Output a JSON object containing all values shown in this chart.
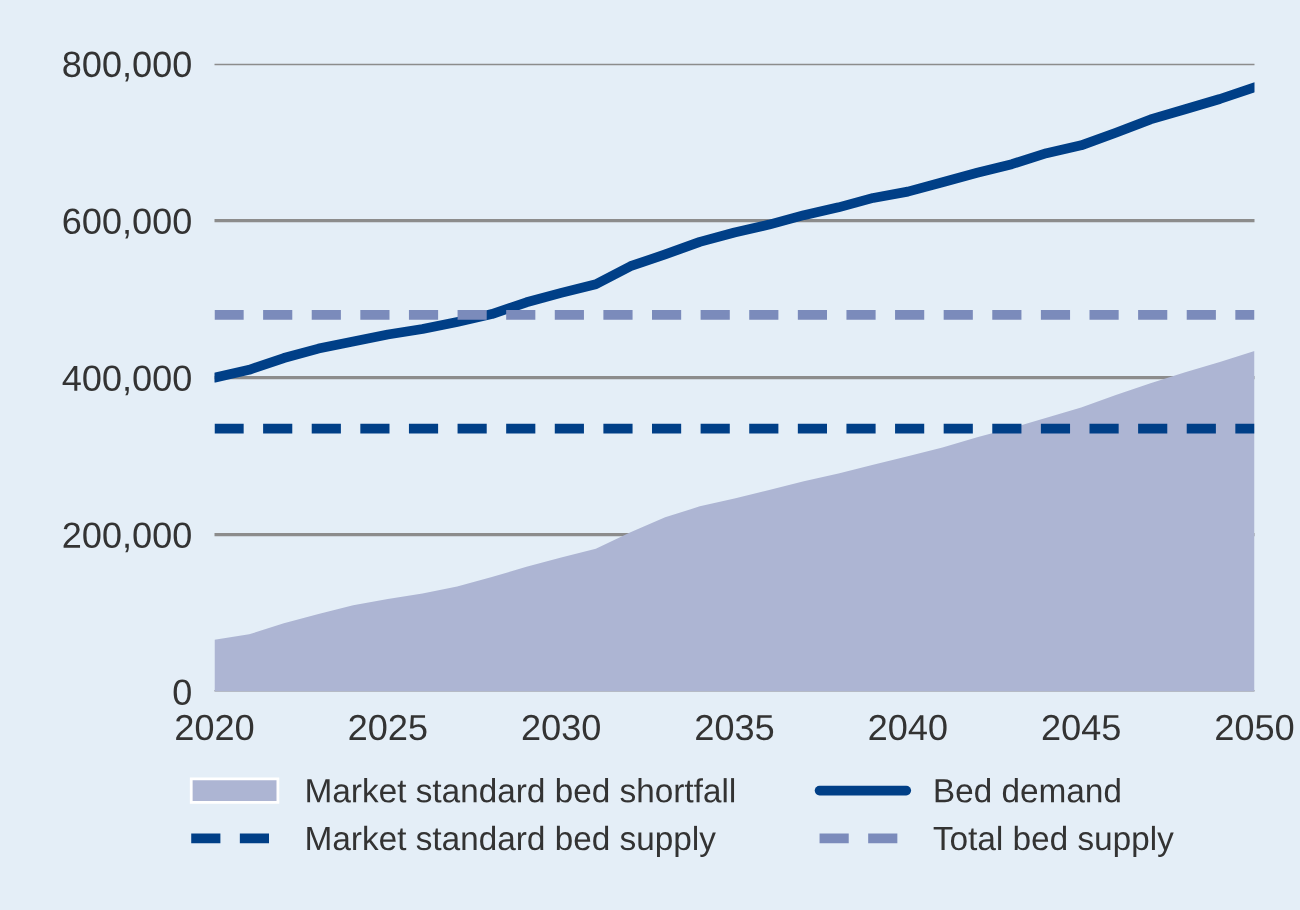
{
  "chart_data": {
    "type": "line",
    "x": [
      2020,
      2021,
      2022,
      2023,
      2024,
      2025,
      2026,
      2027,
      2028,
      2029,
      2030,
      2031,
      2032,
      2033,
      2034,
      2035,
      2036,
      2037,
      2038,
      2039,
      2040,
      2041,
      2042,
      2043,
      2044,
      2045,
      2046,
      2047,
      2048,
      2049,
      2050
    ],
    "series": [
      {
        "name": "Market standard bed shortfall",
        "type": "area",
        "color": "#adb5d3",
        "values": [
          66000,
          73000,
          87000,
          99000,
          110000,
          118000,
          125000,
          134000,
          146000,
          159000,
          171000,
          182000,
          203000,
          222000,
          236000,
          246000,
          257000,
          268000,
          278000,
          289000,
          300000,
          311000,
          324000,
          336000,
          349000,
          362000,
          378000,
          393000,
          407000,
          420000,
          434000
        ]
      },
      {
        "name": "Bed demand",
        "color": "#003f87",
        "line_style": "solid",
        "values": [
          400000,
          410000,
          425000,
          437000,
          446000,
          455000,
          462000,
          471000,
          481000,
          496000,
          508000,
          519000,
          542000,
          557000,
          573000,
          585000,
          595000,
          607000,
          617000,
          629000,
          637000,
          649000,
          661000,
          672000,
          686000,
          696000,
          712000,
          729000,
          742000,
          755000,
          770000
        ]
      },
      {
        "name": "Market standard bed supply",
        "color": "#003f87",
        "line_style": "dashed",
        "values": [
          335000,
          335000,
          335000,
          335000,
          335000,
          335000,
          335000,
          335000,
          335000,
          335000,
          335000,
          335000,
          335000,
          335000,
          335000,
          335000,
          335000,
          335000,
          335000,
          335000,
          335000,
          335000,
          335000,
          335000,
          335000,
          335000,
          335000,
          335000,
          335000,
          335000,
          335000
        ]
      },
      {
        "name": "Total bed supply",
        "color": "#7b8bbb",
        "line_style": "dashed",
        "values": [
          480000,
          480000,
          480000,
          480000,
          480000,
          480000,
          480000,
          480000,
          480000,
          480000,
          480000,
          480000,
          480000,
          480000,
          480000,
          480000,
          480000,
          480000,
          480000,
          480000,
          480000,
          480000,
          480000,
          480000,
          480000,
          480000,
          480000,
          480000,
          480000,
          480000,
          480000
        ]
      }
    ],
    "xlim": [
      2020,
      2050
    ],
    "xticks": [
      2020,
      2025,
      2030,
      2035,
      2040,
      2045,
      2050
    ],
    "ylim": [
      0,
      800000
    ],
    "yticks": [
      {
        "value": 0,
        "label": "0"
      },
      {
        "value": 200000,
        "label": "200,000"
      },
      {
        "value": 400000,
        "label": "400,000"
      },
      {
        "value": 600000,
        "label": "600,000"
      },
      {
        "value": 800000,
        "label": "800,000"
      }
    ],
    "grid": "y",
    "legend": "bottom"
  }
}
